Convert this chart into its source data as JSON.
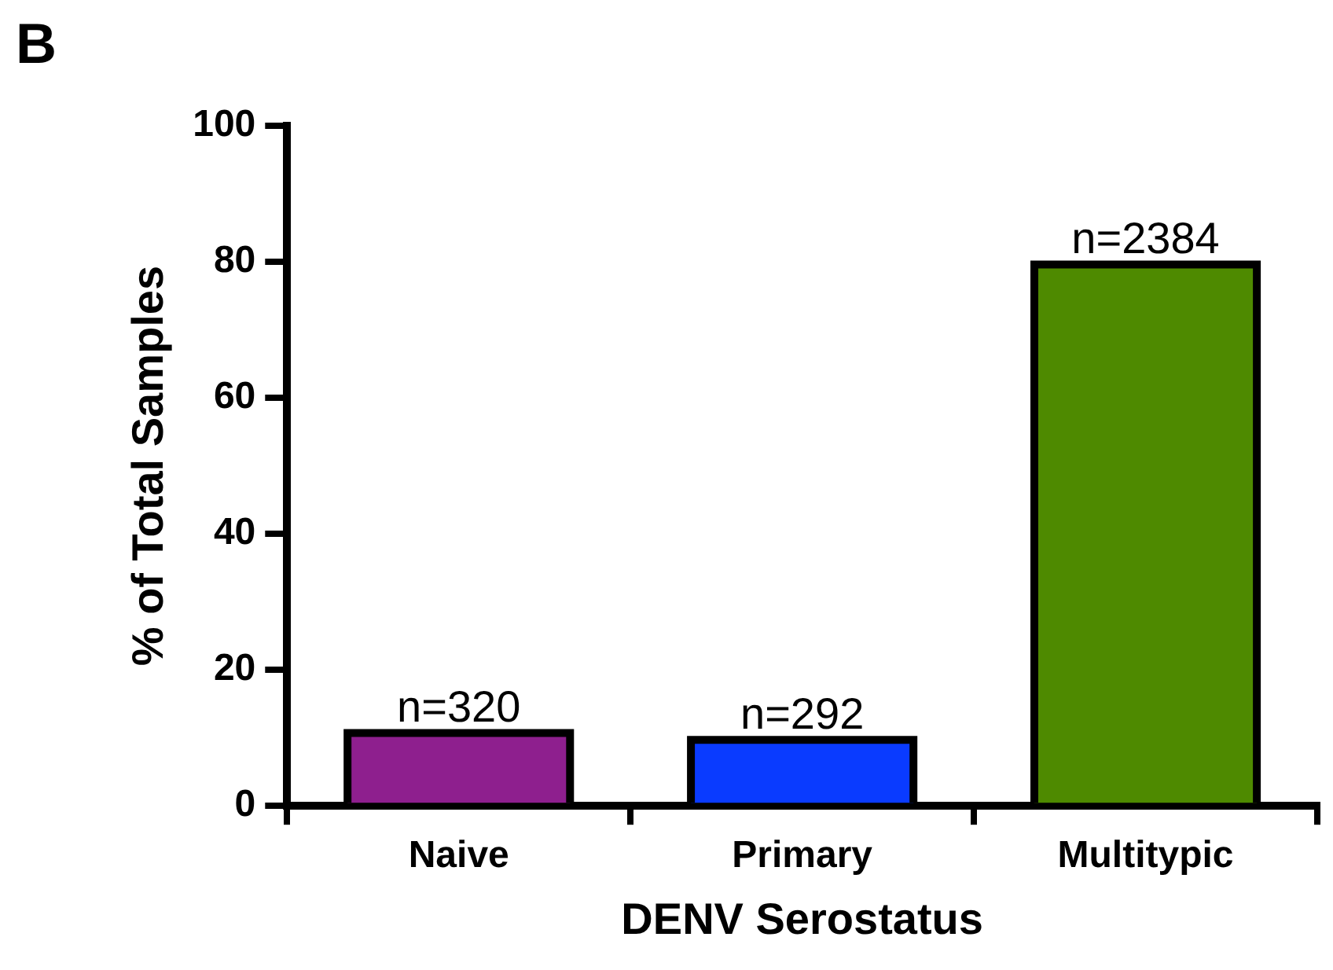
{
  "chart_data": {
    "type": "bar",
    "categories": [
      "Naive",
      "Primary",
      "Multitypic"
    ],
    "values": [
      10.7,
      9.7,
      79.6
    ],
    "colors": [
      "#8e1f8e",
      "#0a3bff",
      "#4e8a00"
    ],
    "xlabel": "DENV Serostatus",
    "ylabel": "% of Total Samples",
    "ylim": [
      0,
      100
    ],
    "yticks": [
      0,
      20,
      40,
      60,
      80,
      100
    ],
    "grid": false,
    "legend": false,
    "annotations": [
      "B",
      {
        "text": "n=320",
        "x": "Naive",
        "y": 10.7
      },
      {
        "text": "n=292",
        "x": "Primary",
        "y": 9.7
      },
      {
        "text": "n=2384",
        "x": "Multitypic",
        "y": 79.6
      }
    ]
  }
}
